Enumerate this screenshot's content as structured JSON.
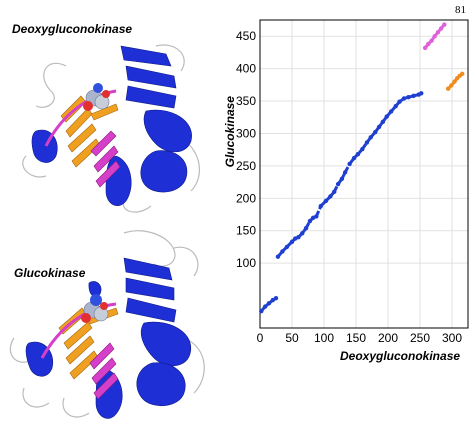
{
  "page": {
    "number": "81"
  },
  "structures": {
    "top_label": "Deoxygluconokinase",
    "bottom_label": "Glucokinase",
    "colors": {
      "core": "#1f2fd6",
      "helix_gold": "#f0a020",
      "helix_magenta": "#d63fc8",
      "ligand": "#aab4cc",
      "coil": "#bbbbbb"
    }
  },
  "chart_data": {
    "type": "scatter",
    "title": "",
    "xlabel": "Deoxygluconokinase",
    "ylabel": "Glucokinase",
    "xlim": [
      0,
      325
    ],
    "ylim": [
      0,
      475
    ],
    "xticks": [
      0,
      50,
      100,
      150,
      200,
      250,
      300
    ],
    "yticks": [
      100,
      150,
      200,
      250,
      300,
      350,
      400,
      450
    ],
    "grid": true,
    "series": [
      {
        "color": "#1f3fd0",
        "points": [
          [
            2,
            26
          ],
          [
            8,
            33
          ],
          [
            14,
            38
          ],
          [
            20,
            43
          ],
          [
            25,
            46
          ],
          [
            28,
            110
          ],
          [
            35,
            118
          ],
          [
            42,
            125
          ],
          [
            50,
            133
          ],
          [
            55,
            138
          ],
          [
            60,
            140
          ],
          [
            66,
            146
          ],
          [
            72,
            154
          ],
          [
            78,
            165
          ],
          [
            83,
            170
          ],
          [
            88,
            172
          ],
          [
            95,
            188
          ],
          [
            103,
            196
          ],
          [
            110,
            203
          ],
          [
            116,
            210
          ],
          [
            122,
            222
          ],
          [
            128,
            230
          ],
          [
            133,
            240
          ],
          [
            140,
            253
          ],
          [
            147,
            262
          ],
          [
            153,
            268
          ],
          [
            160,
            276
          ],
          [
            167,
            286
          ],
          [
            173,
            294
          ],
          [
            180,
            302
          ],
          [
            186,
            310
          ],
          [
            192,
            318
          ],
          [
            198,
            326
          ],
          [
            205,
            334
          ],
          [
            212,
            342
          ],
          [
            218,
            349
          ],
          [
            225,
            354
          ],
          [
            232,
            356
          ],
          [
            240,
            358
          ],
          [
            248,
            360
          ],
          [
            252,
            362
          ]
        ]
      },
      {
        "color": "#e060d8",
        "points": [
          [
            258,
            432
          ],
          [
            263,
            438
          ],
          [
            268,
            443
          ],
          [
            273,
            450
          ],
          [
            278,
            456
          ],
          [
            283,
            462
          ],
          [
            288,
            468
          ]
        ]
      },
      {
        "color": "#f08c1e",
        "points": [
          [
            294,
            369
          ],
          [
            299,
            374
          ],
          [
            304,
            380
          ],
          [
            308,
            385
          ],
          [
            312,
            389
          ],
          [
            316,
            392
          ]
        ]
      }
    ]
  }
}
